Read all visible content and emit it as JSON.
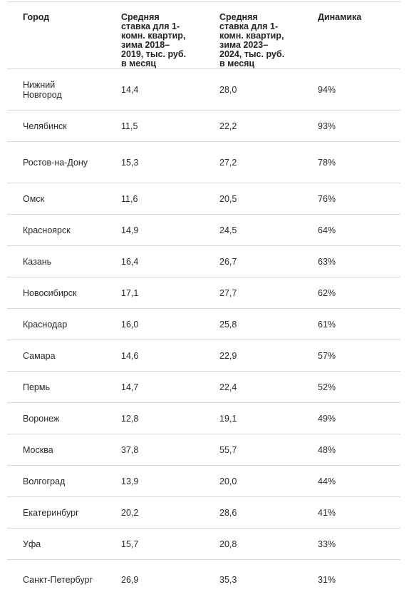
{
  "table": {
    "headers": [
      "Город",
      "Средняя ставка для 1-комн. квартир, зима 2018–2019, тыс. руб. в месяц",
      "Средняя ставка для 1-комн. квартир, зима 2023–2024, тыс. руб. в месяц",
      "Динамика"
    ],
    "rows": [
      {
        "city": "Нижний Новгород",
        "rate_2019": "14,4",
        "rate_2024": "28,0",
        "change": "94%"
      },
      {
        "city": "Челябинск",
        "rate_2019": "11,5",
        "rate_2024": "22,2",
        "change": "93%"
      },
      {
        "city": "Ростов-на-Дону",
        "rate_2019": "15,3",
        "rate_2024": "27,2",
        "change": "78%"
      },
      {
        "city": "Омск",
        "rate_2019": "11,6",
        "rate_2024": "20,5",
        "change": "76%"
      },
      {
        "city": "Красноярск",
        "rate_2019": "14,9",
        "rate_2024": "24,5",
        "change": "64%"
      },
      {
        "city": "Казань",
        "rate_2019": "16,4",
        "rate_2024": "26,7",
        "change": "63%"
      },
      {
        "city": "Новосибирск",
        "rate_2019": "17,1",
        "rate_2024": "27,7",
        "change": "62%"
      },
      {
        "city": "Краснодар",
        "rate_2019": "16,0",
        "rate_2024": "25,8",
        "change": "61%"
      },
      {
        "city": "Самара",
        "rate_2019": "14,6",
        "rate_2024": "22,9",
        "change": "57%"
      },
      {
        "city": "Пермь",
        "rate_2019": "14,7",
        "rate_2024": "22,4",
        "change": "52%"
      },
      {
        "city": "Воронеж",
        "rate_2019": "12,8",
        "rate_2024": "19,1",
        "change": "49%"
      },
      {
        "city": "Москва",
        "rate_2019": "37,8",
        "rate_2024": "55,7",
        "change": "48%"
      },
      {
        "city": "Волгоград",
        "rate_2019": "13,9",
        "rate_2024": "20,0",
        "change": "44%"
      },
      {
        "city": "Екатеринбург",
        "rate_2019": "20,2",
        "rate_2024": "28,6",
        "change": "41%"
      },
      {
        "city": "Уфа",
        "rate_2019": "15,7",
        "rate_2024": "20,8",
        "change": "33%"
      },
      {
        "city": "Санкт-Петербург",
        "rate_2019": "26,9",
        "rate_2024": "35,3",
        "change": "31%"
      }
    ]
  }
}
